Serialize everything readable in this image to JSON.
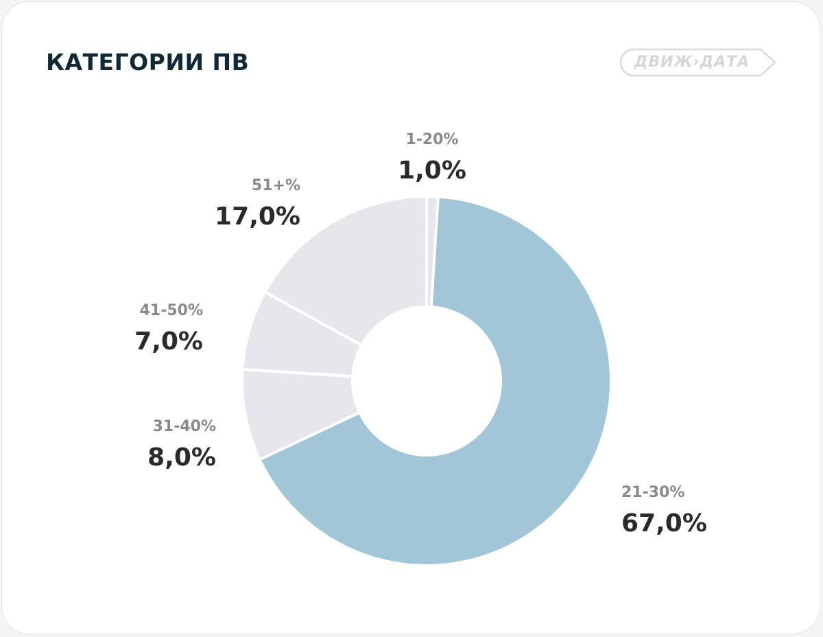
{
  "header": {
    "title": "КАТЕГОРИИ ПВ",
    "logo_text": "ДВИЖ›ДАТА"
  },
  "colors": {
    "highlight": "#a0c6d8",
    "muted": "#e6e7eb",
    "separator": "#ffffff"
  },
  "chart_data": {
    "type": "pie",
    "title": "КАТЕГОРИИ ПВ",
    "donut": true,
    "start": "top",
    "direction": "clockwise",
    "slices": [
      {
        "label": "1-20%",
        "value": 1.0,
        "display": "1,0%",
        "color": "#e6e7eb"
      },
      {
        "label": "21-30%",
        "value": 67.0,
        "display": "67,0%",
        "color": "#a0c6d8"
      },
      {
        "label": "31-40%",
        "value": 8.0,
        "display": "8,0%",
        "color": "#e6e7eb"
      },
      {
        "label": "41-50%",
        "value": 7.0,
        "display": "7,0%",
        "color": "#e6e7eb"
      },
      {
        "label": "51+%",
        "value": 17.0,
        "display": "17,0%",
        "color": "#e6e7eb"
      }
    ]
  }
}
